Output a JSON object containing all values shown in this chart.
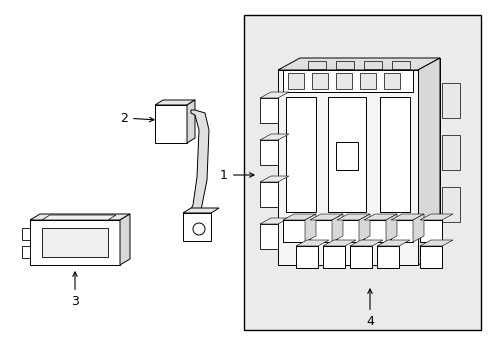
{
  "bg_color": "#ffffff",
  "lc": "#000000",
  "box_bg": "#ebebeb",
  "part_bg": "#ffffff",
  "part_outline": "#333333"
}
